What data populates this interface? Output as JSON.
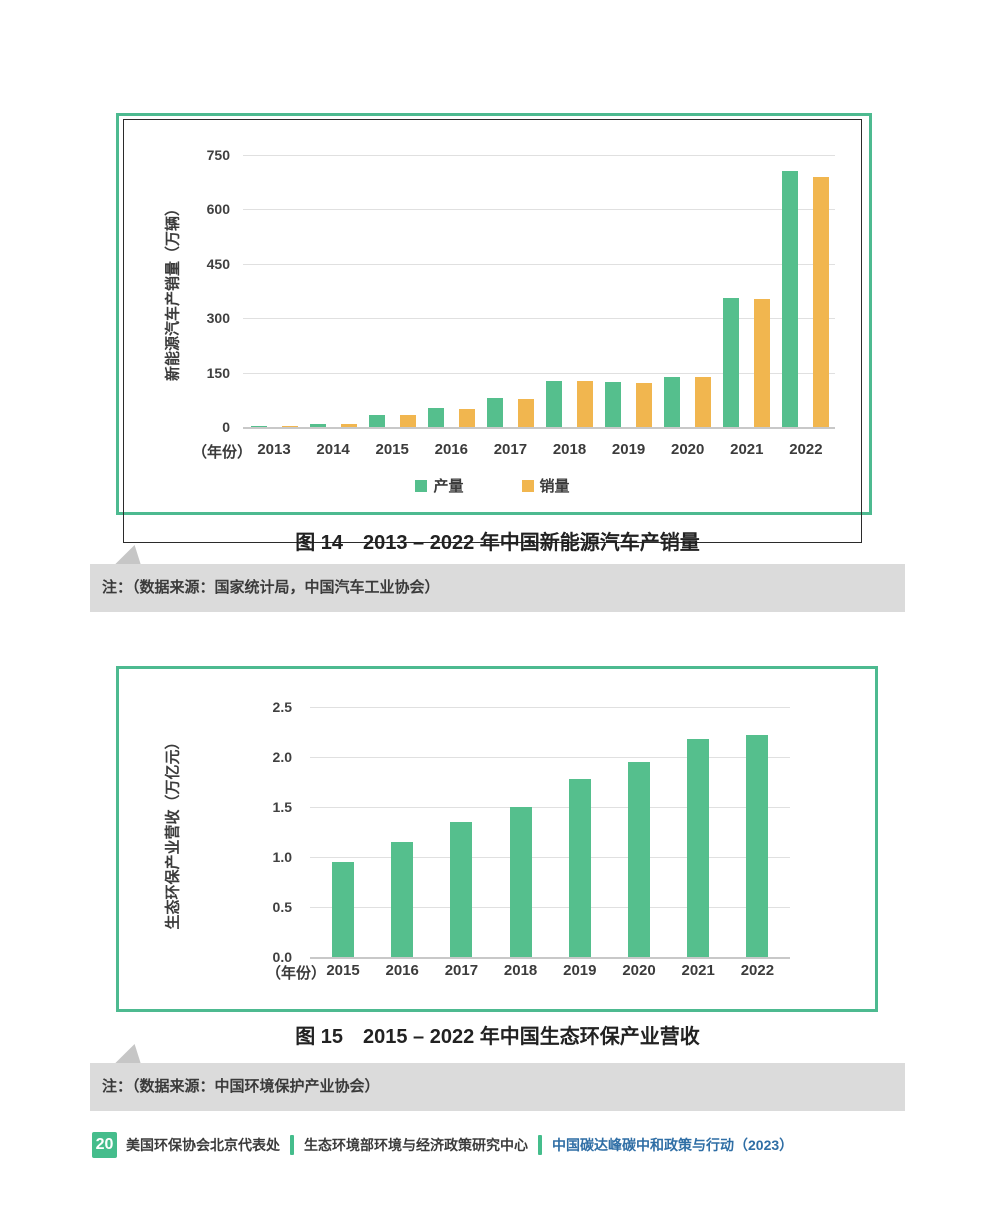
{
  "chart_data": [
    {
      "id": "fig14",
      "type": "bar",
      "title": "图 14　2013 – 2022 年中国新能源汽车产销量",
      "note": "注：（数据来源：国家统计局，中国汽车工业协会）",
      "categories": [
        "2013",
        "2014",
        "2015",
        "2016",
        "2017",
        "2018",
        "2019",
        "2020",
        "2021",
        "2022"
      ],
      "series": [
        {
          "name": "产量",
          "color": "#55BF8D",
          "values": [
            1.8,
            7.8,
            34.0,
            51.7,
            79.4,
            127.0,
            124.2,
            136.6,
            354.5,
            705.8
          ]
        },
        {
          "name": "销量",
          "color": "#F1B64F",
          "values": [
            1.8,
            7.5,
            33.1,
            50.7,
            77.7,
            125.6,
            120.6,
            136.7,
            352.1,
            688.7
          ]
        }
      ],
      "xlabel": "（年份）",
      "ylabel": "新能源汽车产销量（万辆）",
      "yticks": [
        "0",
        "150",
        "300",
        "450",
        "600",
        "750"
      ],
      "ylim": [
        0,
        750
      ],
      "grid": "horizontal",
      "legend_position": "bottom"
    },
    {
      "id": "fig15",
      "type": "bar",
      "title": "图 15　2015 – 2022 年中国生态环保产业营收",
      "note": "注：（数据来源：中国环境保护产业协会）",
      "categories": [
        "2015",
        "2016",
        "2017",
        "2018",
        "2019",
        "2020",
        "2021",
        "2022"
      ],
      "series": [
        {
          "name": "营收",
          "color": "#55BF8D",
          "values": [
            0.95,
            1.15,
            1.35,
            1.5,
            1.78,
            1.95,
            2.18,
            2.22
          ]
        }
      ],
      "xlabel": "（年份）",
      "ylabel": "生态环保产业营收（万亿元）",
      "yticks": [
        "0.0",
        "0.5",
        "1.0",
        "1.5",
        "2.0",
        "2.5"
      ],
      "ylim": [
        0,
        2.5
      ],
      "grid": "horizontal",
      "legend_position": "none"
    }
  ],
  "footer": {
    "page_number": "20",
    "org1": "美国环保协会北京代表处",
    "org2": "生态环境部环境与经济政策研究中心",
    "report_title": "中国碳达峰碳中和政策与行动（2023）"
  },
  "colors": {
    "bar_green": "#55BF8D",
    "bar_yellow": "#F1B64F",
    "frame_green": "#4DBA90",
    "note_band_gray": "#DBDBDB",
    "note_tail_gray": "#C6C6C6",
    "gridline_gray": "#E0E0E0",
    "axis_baseline_gray": "#C8C8C8",
    "footer_green": "#45BD8C",
    "footer_blue": "#2F6EA5"
  }
}
